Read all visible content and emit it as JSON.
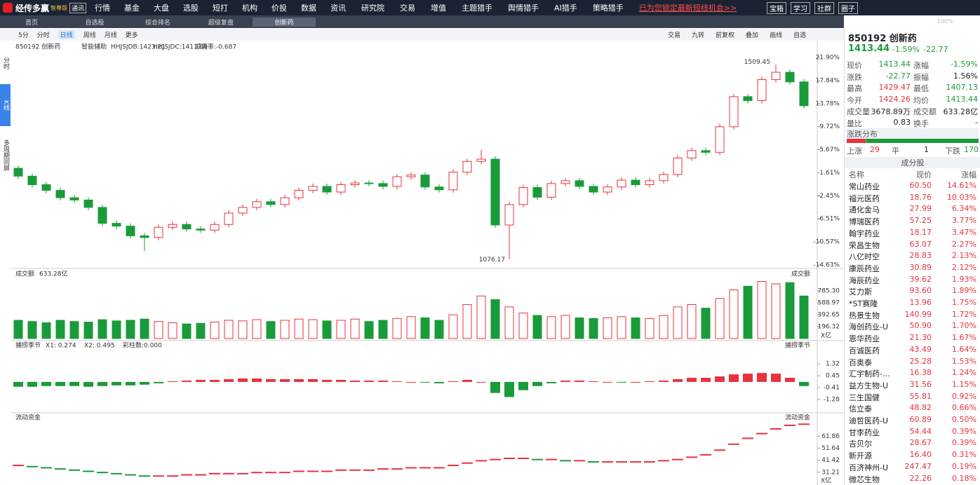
{
  "menu": {
    "logo": "经传多赢",
    "edition": "智尊版",
    "badge": "通讯",
    "items": [
      "行情",
      "基金",
      "大盘",
      "选股",
      "短打",
      "机构",
      "价投",
      "数据",
      "资讯",
      "研究院",
      "交易",
      "增值",
      "主题猎手",
      "舆情猎手",
      "AI猎手",
      "策略猎手"
    ],
    "promo": "已为您锁定最新短线机会>>",
    "buttons": [
      "宝箱",
      "学习",
      "社群",
      "圈子"
    ],
    "zoom": "100%"
  },
  "tabs": [
    "首页",
    "自选股",
    "综合排名",
    "超级复盘",
    "创新药"
  ],
  "toolbar": {
    "left": [
      "5分",
      "分时",
      "日线",
      "周线",
      "月线",
      "更多"
    ],
    "right": [
      "交易",
      "九转",
      "前复权",
      "叠加",
      "画线",
      "自选"
    ]
  },
  "side_tabs": [
    "分时",
    "K线",
    "多周期同屏"
  ],
  "kline": {
    "header": [
      "850192 创新药",
      "智能辅助",
      "HHJSJDB:1423.21",
      "HHJSJDC:1411.69",
      "顺离率:-0.687"
    ],
    "ylim": [
      -14.63,
      21.9
    ],
    "yticks": [
      {
        "value": 21.9,
        "label": "21.90%"
      },
      {
        "value": 17.84,
        "label": "17.84%"
      },
      {
        "value": 13.78,
        "label": "13.78%"
      },
      {
        "value": 9.72,
        "label": "9.72%"
      },
      {
        "value": 5.67,
        "label": "5.67%"
      },
      {
        "value": 1.61,
        "label": "1.61%"
      },
      {
        "value": -2.45,
        "label": "-2.45%"
      },
      {
        "value": -6.51,
        "label": "-6.51%"
      },
      {
        "value": -10.57,
        "label": "-10.57%"
      },
      {
        "value": -14.63,
        "label": "-14.63%"
      }
    ],
    "open": [
      2.4,
      1.0,
      -0.5,
      -1.5,
      -2.8,
      -3.2,
      -4.5,
      -7.3,
      -7.8,
      -9.5,
      -9.8,
      -8.0,
      -7.5,
      -8.3,
      -8.5,
      -7.5,
      -5.5,
      -4.5,
      -3.5,
      -4.0,
      -2.8,
      -1.5,
      -0.8,
      -1.8,
      -0.5,
      -0.2,
      -0.3,
      -0.8,
      0.9,
      1.2,
      -0.9,
      -1.4,
      1.7,
      3.6,
      4.0,
      -7.6,
      -4.0,
      -1.0,
      -2.7,
      -0.3,
      0.2,
      -0.8,
      -1.8,
      -0.9,
      0.3,
      -0.5,
      0.2,
      1.3,
      4.2,
      5.5,
      5.2,
      9.7,
      15.0,
      14.3,
      18.0,
      19.3,
      17.6
    ],
    "high": [
      2.9,
      1.5,
      0.0,
      -1.0,
      -2.3,
      -2.7,
      -4.0,
      -6.8,
      -7.3,
      -9.0,
      -7.5,
      -7.0,
      -7.0,
      -7.8,
      -7.0,
      -5.0,
      -4.0,
      -3.0,
      -3.0,
      -2.3,
      -1.0,
      -0.3,
      -0.3,
      0.0,
      0.3,
      0.3,
      0.2,
      1.4,
      1.7,
      1.7,
      -0.4,
      2.2,
      4.1,
      5.6,
      4.5,
      -3.5,
      -0.5,
      -0.5,
      0.2,
      0.7,
      0.7,
      -0.3,
      -0.4,
      0.8,
      0.8,
      0.7,
      1.8,
      4.7,
      6.0,
      6.0,
      10.2,
      15.5,
      15.5,
      18.5,
      20.6,
      19.8,
      18.1
    ],
    "low": [
      0.5,
      -1.0,
      -2.0,
      -3.3,
      -3.7,
      -5.0,
      -7.8,
      -8.3,
      -10.0,
      -12.2,
      -10.3,
      -8.5,
      -8.8,
      -9.0,
      -9.0,
      -8.0,
      -6.0,
      -5.0,
      -4.5,
      -4.5,
      -3.3,
      -2.0,
      -2.3,
      -2.3,
      -1.0,
      -0.8,
      -1.3,
      -1.3,
      0.4,
      -1.4,
      -1.9,
      -1.9,
      1.2,
      3.1,
      -8.1,
      -13.6,
      -4.5,
      -3.2,
      -3.2,
      -0.8,
      -1.3,
      -2.3,
      -2.3,
      -1.4,
      -1.0,
      -1.0,
      -0.3,
      0.8,
      3.7,
      4.7,
      4.7,
      9.2,
      13.8,
      13.8,
      17.5,
      17.1,
      12.9
    ],
    "close": [
      1.0,
      -0.5,
      -1.5,
      -2.8,
      -3.2,
      -4.5,
      -7.3,
      -7.8,
      -9.5,
      -9.8,
      -8.0,
      -7.5,
      -8.3,
      -8.5,
      -7.5,
      -5.5,
      -4.5,
      -3.5,
      -4.0,
      -2.8,
      -1.5,
      -0.8,
      -1.8,
      -0.5,
      -0.2,
      -0.3,
      -0.8,
      0.9,
      1.2,
      -0.9,
      -1.4,
      1.7,
      3.6,
      4.0,
      -7.6,
      -4.0,
      -1.0,
      -2.7,
      -0.3,
      0.2,
      -0.8,
      -1.8,
      -0.9,
      0.3,
      -0.5,
      0.2,
      1.3,
      4.2,
      5.5,
      5.2,
      9.7,
      15.0,
      14.3,
      18.0,
      19.3,
      17.6,
      13.4
    ],
    "max_label": "1509.45",
    "min_label": "1076.17"
  },
  "volume": {
    "title": "成交额",
    "total": "633.28亿",
    "right_title": "成交额",
    "unit": "X亿",
    "ylim": [
      0,
      1015
    ],
    "yticks": [
      196.32,
      392.65,
      588.97,
      {
        "value": 785.3,
        "label": "785.30"
      }
    ],
    "values": [
      300,
      280,
      260,
      300,
      280,
      270,
      310,
      290,
      300,
      320,
      280,
      260,
      240,
      250,
      270,
      300,
      290,
      310,
      280,
      300,
      320,
      310,
      290,
      300,
      320,
      280,
      300,
      330,
      360,
      340,
      300,
      390,
      560,
      700,
      640,
      520,
      420,
      380,
      360,
      380,
      340,
      330,
      340,
      360,
      340,
      330,
      380,
      520,
      560,
      500,
      660,
      800,
      860,
      940,
      900,
      920,
      700
    ]
  },
  "indicator": {
    "title": "捕捞季节",
    "x1": "X1: 0.274",
    "x2": "X2: 0.495",
    "bars_label": "彩柱数:0.000",
    "right_title": "捕捞季节",
    "ylim": [
      -2.04,
      2.44
    ],
    "yticks": [
      1.32,
      0.45,
      -0.41,
      -1.28
    ],
    "values": [
      -0.35,
      -0.35,
      -0.3,
      -0.3,
      -0.3,
      -0.35,
      -0.3,
      -0.25,
      -0.25,
      -0.2,
      -0.1,
      0.05,
      0.1,
      0.15,
      0.15,
      0.2,
      0.25,
      0.25,
      0.2,
      0.2,
      0.2,
      0.2,
      0.15,
      0.15,
      0.1,
      0.1,
      0.1,
      0.05,
      0.0,
      -0.05,
      -0.1,
      0.05,
      0.15,
      0.0,
      -0.8,
      -1.1,
      -0.6,
      -0.3,
      -0.1,
      0.1,
      0.1,
      0.05,
      0.0,
      -0.05,
      0.0,
      0.05,
      0.1,
      0.2,
      0.3,
      0.3,
      0.4,
      0.55,
      0.6,
      0.65,
      0.6,
      0.3,
      -0.3
    ]
  },
  "flow": {
    "title": "流动资金",
    "right_title": "流动资金",
    "unit": "X亿",
    "ylim": [
      20.4,
      76.3
    ],
    "yticks": [
      61.86,
      51.64,
      41.42,
      31.21
    ],
    "values": [
      37,
      36,
      35,
      34,
      33,
      32,
      31,
      30,
      29,
      28,
      28,
      28,
      29,
      29,
      30,
      30,
      30,
      31,
      31,
      31,
      32,
      32,
      32,
      33,
      33,
      33,
      34,
      34,
      35,
      35,
      35,
      37,
      39,
      41,
      42,
      43,
      43,
      42,
      42,
      41,
      41,
      40,
      40,
      40,
      40,
      40,
      41,
      42,
      44,
      46,
      50,
      55,
      60,
      64,
      68,
      71,
      72
    ]
  },
  "quote": {
    "code_name": "850192 创新药",
    "price": "1413.44",
    "change_pct": "-1.59%",
    "change": "-22.77",
    "grid": [
      [
        "现价",
        "1413.44",
        "涨幅",
        "-1.59%"
      ],
      [
        "涨跌",
        "-22.77",
        "振幅",
        "1.56%"
      ],
      [
        "最高",
        "1429.47",
        "最低",
        "1407.13"
      ],
      [
        "今开",
        "1424.26",
        "均价",
        "1413.44"
      ],
      [
        "成交量",
        "3678.89万",
        "成交额",
        "633.28亿"
      ],
      [
        "量比",
        "0.83",
        "换手",
        "-"
      ]
    ],
    "dist": {
      "title": "涨跌分布",
      "up_label": "上涨",
      "up": 29,
      "flat_label": "平",
      "flat": 1,
      "down_label": "下跌",
      "down": 170
    }
  },
  "constituents": {
    "title": "成分股",
    "columns": [
      "名称",
      "现价",
      "涨幅"
    ],
    "rows": [
      [
        "常山药业",
        "60.50",
        "14.61%"
      ],
      [
        "福元医药",
        "18.76",
        "10.03%"
      ],
      [
        "通化金马",
        "27.99",
        "6.34%"
      ],
      [
        "博瑞医药",
        "57.25",
        "3.77%"
      ],
      [
        "翰宇药业",
        "18.17",
        "3.47%"
      ],
      [
        "荣昌生物",
        "63.07",
        "2.27%"
      ],
      [
        "八亿时空",
        "28.83",
        "2.13%"
      ],
      [
        "康辰药业",
        "30.89",
        "2.12%"
      ],
      [
        "海辰药业",
        "39.62",
        "1.93%"
      ],
      [
        "艾力斯",
        "93.60",
        "1.89%"
      ],
      [
        "*ST赛隆",
        "13.96",
        "1.75%"
      ],
      [
        "热景生物",
        "140.99",
        "1.72%"
      ],
      [
        "海创药业-U",
        "50.90",
        "1.70%"
      ],
      [
        "恩华药业",
        "21.30",
        "1.67%"
      ],
      [
        "百诚医药",
        "43.49",
        "1.64%"
      ],
      [
        "百奥泰",
        "25.28",
        "1.53%"
      ],
      [
        "汇宇制药-...",
        "16.38",
        "1.24%"
      ],
      [
        "益方生物-U",
        "31.56",
        "1.15%"
      ],
      [
        "三生国健",
        "55.81",
        "0.92%"
      ],
      [
        "信立泰",
        "48.82",
        "0.66%"
      ],
      [
        "迪哲医药-U",
        "60.89",
        "0.50%"
      ],
      [
        "甘李药业",
        "54.44",
        "0.39%"
      ],
      [
        "吉贝尔",
        "28.67",
        "0.39%"
      ],
      [
        "新开源",
        "16.40",
        "0.31%"
      ],
      [
        "百济神州-U",
        "247.47",
        "0.19%"
      ],
      [
        "微芯生物",
        "22.26",
        "0.18%"
      ]
    ]
  }
}
